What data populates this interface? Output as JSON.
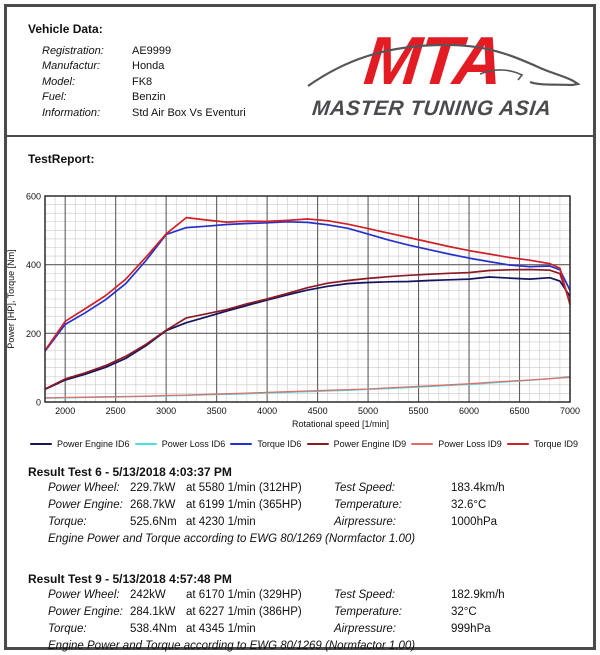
{
  "page": {
    "vehicle_data": {
      "title": "Vehicle Data:",
      "rows": [
        {
          "label": "Registration:",
          "value": "AE9999"
        },
        {
          "label": "Manufactur:",
          "value": "Honda"
        },
        {
          "label": "Model:",
          "value": "FK8"
        },
        {
          "label": "Fuel:",
          "value": "Benzin"
        },
        {
          "label": "Information:",
          "value": "Std Air Box Vs Eventuri"
        }
      ]
    },
    "logo": {
      "acronym": "MTA",
      "name": "MASTER TUNING ASIA",
      "accent_color": "#e31b23",
      "text_color": "#4a4a4f"
    },
    "test_report_title": "TestReport:",
    "results": [
      {
        "title": "Result Test 6 - 5/13/2018 4:03:37 PM",
        "rows": [
          {
            "label": "Power Wheel:",
            "value": "229.7kW",
            "at": "at 5580 1/min (312HP)",
            "label2": "Test Speed:",
            "value2": "183.4km/h"
          },
          {
            "label": "Power Engine:",
            "value": "268.7kW",
            "at": "at 6199 1/min (365HP)",
            "label2": "Temperature:",
            "value2": "32.6°C"
          },
          {
            "label": "Torque:",
            "value": "525.6Nm",
            "at": "at 4230 1/min",
            "label2": "Airpressure:",
            "value2": "1000hPa"
          }
        ],
        "note": "Engine Power and Torque according to EWG 80/1269 (Normfactor 1.00)"
      },
      {
        "title": "Result Test 9 - 5/13/2018 4:57:48 PM",
        "rows": [
          {
            "label": "Power Wheel:",
            "value": "242kW",
            "at": "at 6170 1/min (329HP)",
            "label2": "Test Speed:",
            "value2": "182.9km/h"
          },
          {
            "label": "Power Engine:",
            "value": "284.1kW",
            "at": "at 6227 1/min (386HP)",
            "label2": "Temperature:",
            "value2": "32°C"
          },
          {
            "label": "Torque:",
            "value": "538.4Nm",
            "at": "at 4345 1/min",
            "label2": "Airpressure:",
            "value2": "999hPa"
          }
        ],
        "note": "Engine Power and Torque according to EWG 80/1269 (Normfactor 1.00)"
      }
    ]
  },
  "chart_data": {
    "type": "line",
    "title": "TestReport",
    "xlabel": "Rotational  speed [1/min]",
    "ylabel": "Power [HP], Torque [Nm]",
    "xlim": [
      1800,
      7000
    ],
    "ylim": [
      0,
      600
    ],
    "x_ticks": [
      2000,
      2500,
      3000,
      3500,
      4000,
      4500,
      5000,
      5500,
      6000,
      6500,
      7000
    ],
    "y_ticks": [
      0,
      200,
      400,
      600
    ],
    "grid": {
      "minor_x_step": 100,
      "major_x_step": 500,
      "minor_y_step": 25,
      "major_y_step": 200
    },
    "legend_position": "bottom",
    "x": [
      1800,
      2000,
      2200,
      2400,
      2600,
      2800,
      3000,
      3200,
      3400,
      3600,
      3800,
      4000,
      4200,
      4400,
      4600,
      4800,
      5000,
      5200,
      5400,
      5600,
      5800,
      6000,
      6200,
      6400,
      6600,
      6800,
      6900,
      7000
    ],
    "series": [
      {
        "name": "Power Engine ID6",
        "color": "#15155f",
        "values": [
          37,
          64,
          81,
          101,
          127,
          164,
          208,
          231,
          248,
          265,
          281,
          297,
          312,
          326,
          337,
          345,
          348,
          350,
          351,
          354,
          356,
          358,
          364,
          361,
          358,
          362,
          352,
          308
        ]
      },
      {
        "name": "Power Loss ID6",
        "color": "#4adedd",
        "values": [
          11,
          12,
          13,
          14,
          15,
          16,
          18,
          19,
          21,
          22,
          24,
          26,
          28,
          30,
          32,
          34,
          37,
          39,
          42,
          45,
          48,
          51,
          55,
          59,
          63,
          68,
          71,
          74
        ]
      },
      {
        "name": "Torque ID6",
        "color": "#2531c8",
        "values": [
          148,
          226,
          260,
          298,
          345,
          412,
          488,
          508,
          512,
          517,
          520,
          522,
          525,
          523,
          516,
          506,
          489,
          472,
          457,
          444,
          431,
          419,
          409,
          399,
          394,
          396,
          385,
          325
        ]
      },
      {
        "name": "Power Engine ID9",
        "color": "#8b1a24",
        "values": [
          38,
          67,
          85,
          106,
          133,
          168,
          209,
          245,
          257,
          269,
          286,
          300,
          316,
          333,
          346,
          354,
          360,
          365,
          369,
          372,
          375,
          377,
          383,
          385,
          386,
          384,
          374,
          290
        ]
      },
      {
        "name": "Power Loss ID9",
        "color": "#e06c6c",
        "values": [
          12,
          13,
          14,
          15,
          16,
          17,
          19,
          20,
          22,
          24,
          26,
          28,
          30,
          32,
          34,
          36,
          38,
          41,
          44,
          47,
          50,
          53,
          57,
          61,
          64,
          68,
          70,
          72
        ]
      },
      {
        "name": "Torque ID9",
        "color": "#cf2128",
        "values": [
          150,
          235,
          272,
          310,
          358,
          422,
          490,
          537,
          530,
          524,
          527,
          526,
          529,
          533,
          528,
          518,
          505,
          492,
          479,
          466,
          453,
          441,
          431,
          421,
          413,
          403,
          390,
          283
        ]
      }
    ]
  }
}
